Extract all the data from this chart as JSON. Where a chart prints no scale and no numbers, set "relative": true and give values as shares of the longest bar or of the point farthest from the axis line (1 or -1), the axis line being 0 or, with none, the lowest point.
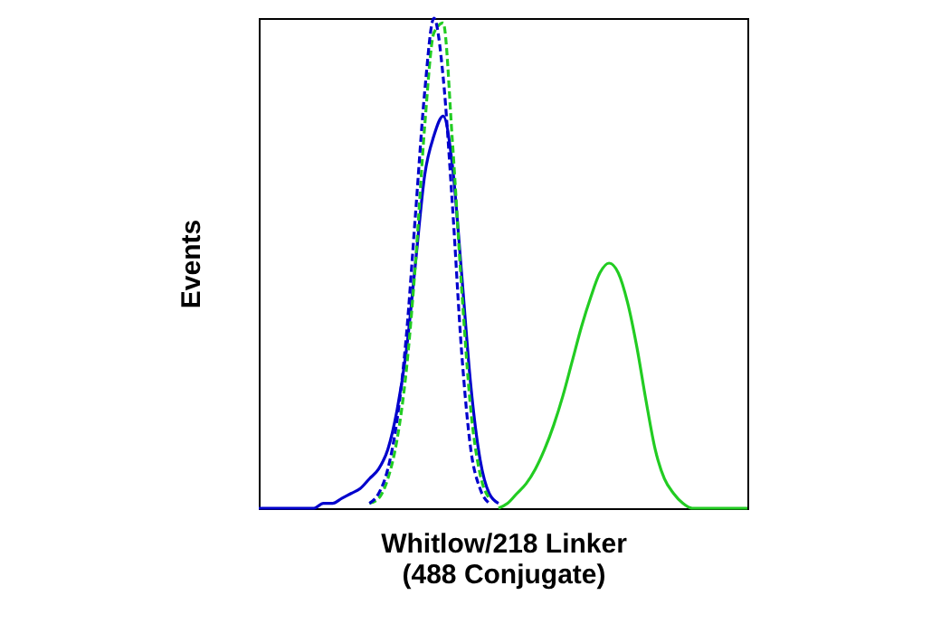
{
  "chart_data": {
    "type": "line",
    "relative": true,
    "ylabel": "Events",
    "xlabel": "Whitlow/218 Linker\n(488 Conjugate)",
    "categories": [
      null,
      null,
      null,
      null,
      null,
      null,
      null,
      null,
      null,
      null,
      null,
      null,
      null,
      null,
      null,
      null,
      null,
      null,
      null,
      null,
      null,
      null,
      null,
      null,
      null,
      null,
      null,
      null,
      null,
      null,
      null,
      null,
      null,
      null,
      null,
      null,
      null,
      null,
      null,
      null,
      null,
      null,
      null,
      null,
      null,
      null,
      null,
      null,
      null,
      null,
      null,
      null,
      null,
      null
    ],
    "series": [
      {
        "color": "#22cc22",
        "line_style": "solid",
        "values": [
          null,
          null,
          null,
          null,
          null,
          null,
          null,
          null,
          null,
          null,
          null,
          null,
          null,
          null,
          null,
          null,
          null,
          null,
          null,
          null,
          null,
          null,
          null,
          null,
          null,
          null,
          0,
          0.01,
          0.03,
          0.05,
          0.08,
          0.12,
          0.17,
          0.23,
          0.3,
          0.37,
          0.43,
          0.48,
          0.5,
          0.48,
          0.42,
          0.33,
          0.22,
          0.12,
          0.06,
          0.03,
          0.01,
          0,
          0,
          0,
          0,
          0,
          0,
          0
        ]
      },
      {
        "color": "#0000cc",
        "line_style": "solid",
        "values": [
          0,
          0,
          0,
          0,
          0,
          0,
          0,
          0.01,
          0.01,
          0.02,
          0.03,
          0.04,
          0.06,
          0.08,
          0.12,
          0.2,
          0.32,
          0.5,
          0.68,
          0.76,
          0.8,
          0.7,
          0.48,
          0.25,
          0.1,
          0.03,
          0.01,
          null,
          null,
          null,
          null,
          null,
          null,
          null,
          null,
          null,
          null,
          null,
          null,
          null,
          null,
          null,
          null,
          null,
          null,
          null,
          null,
          null,
          null,
          null,
          null,
          null,
          null,
          null
        ]
      },
      {
        "color": "#22cc22",
        "line_style": "dashed",
        "values": [
          null,
          null,
          null,
          null,
          null,
          null,
          null,
          null,
          null,
          null,
          null,
          null,
          0.01,
          0.02,
          0.06,
          0.14,
          0.28,
          0.5,
          0.78,
          0.97,
          0.99,
          0.75,
          0.45,
          0.2,
          0.07,
          0.02,
          null,
          null,
          null,
          null,
          null,
          null,
          null,
          null,
          null,
          null,
          null,
          null,
          null,
          null,
          null,
          null,
          null,
          null,
          null,
          null,
          null,
          null,
          null,
          null,
          null,
          null,
          null,
          null
        ]
      },
      {
        "color": "#0000cc",
        "line_style": "dashed",
        "values": [
          null,
          null,
          null,
          null,
          null,
          null,
          null,
          null,
          null,
          null,
          null,
          null,
          0.01,
          0.03,
          0.08,
          0.18,
          0.35,
          0.6,
          0.85,
          1.0,
          0.88,
          0.62,
          0.32,
          0.12,
          0.04,
          0.01,
          null,
          null,
          null,
          null,
          null,
          null,
          null,
          null,
          null,
          null,
          null,
          null,
          null,
          null,
          null,
          null,
          null,
          null,
          null,
          null,
          null,
          null,
          null,
          null,
          null,
          null,
          null,
          null
        ]
      }
    ]
  }
}
